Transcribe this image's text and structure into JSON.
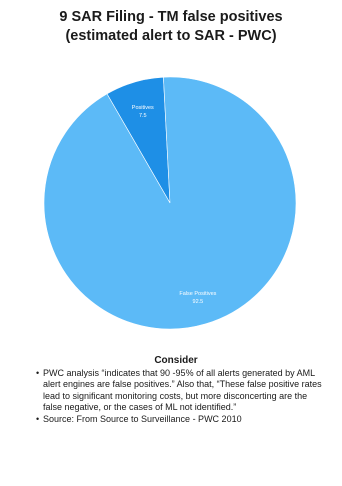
{
  "chart_data": {
    "type": "pie",
    "title": "9 SAR Filing - TM false positives",
    "subtitle": "(estimated alert to SAR  - PWC)",
    "slices": [
      {
        "label": "Positives",
        "value": 7.5,
        "display_value": "7.5",
        "color": "#1e8fe6"
      },
      {
        "label": "False Positives",
        "value": 92.5,
        "display_value": "92.5",
        "color": "#5cbaf7"
      }
    ],
    "start_angle_deg": -30,
    "legend": "none"
  },
  "notes": {
    "heading": "Consider",
    "bullets": [
      "PWC analysis “indicates that 90 -95% of all alerts generated by AML alert engines are false positives.” Also that, “These false positive rates lead to significant monitoring costs, but more disconcerting are the false negative, or the cases of ML not identified.”",
      "Source: From Source to Surveillance - PWC 2010"
    ]
  }
}
